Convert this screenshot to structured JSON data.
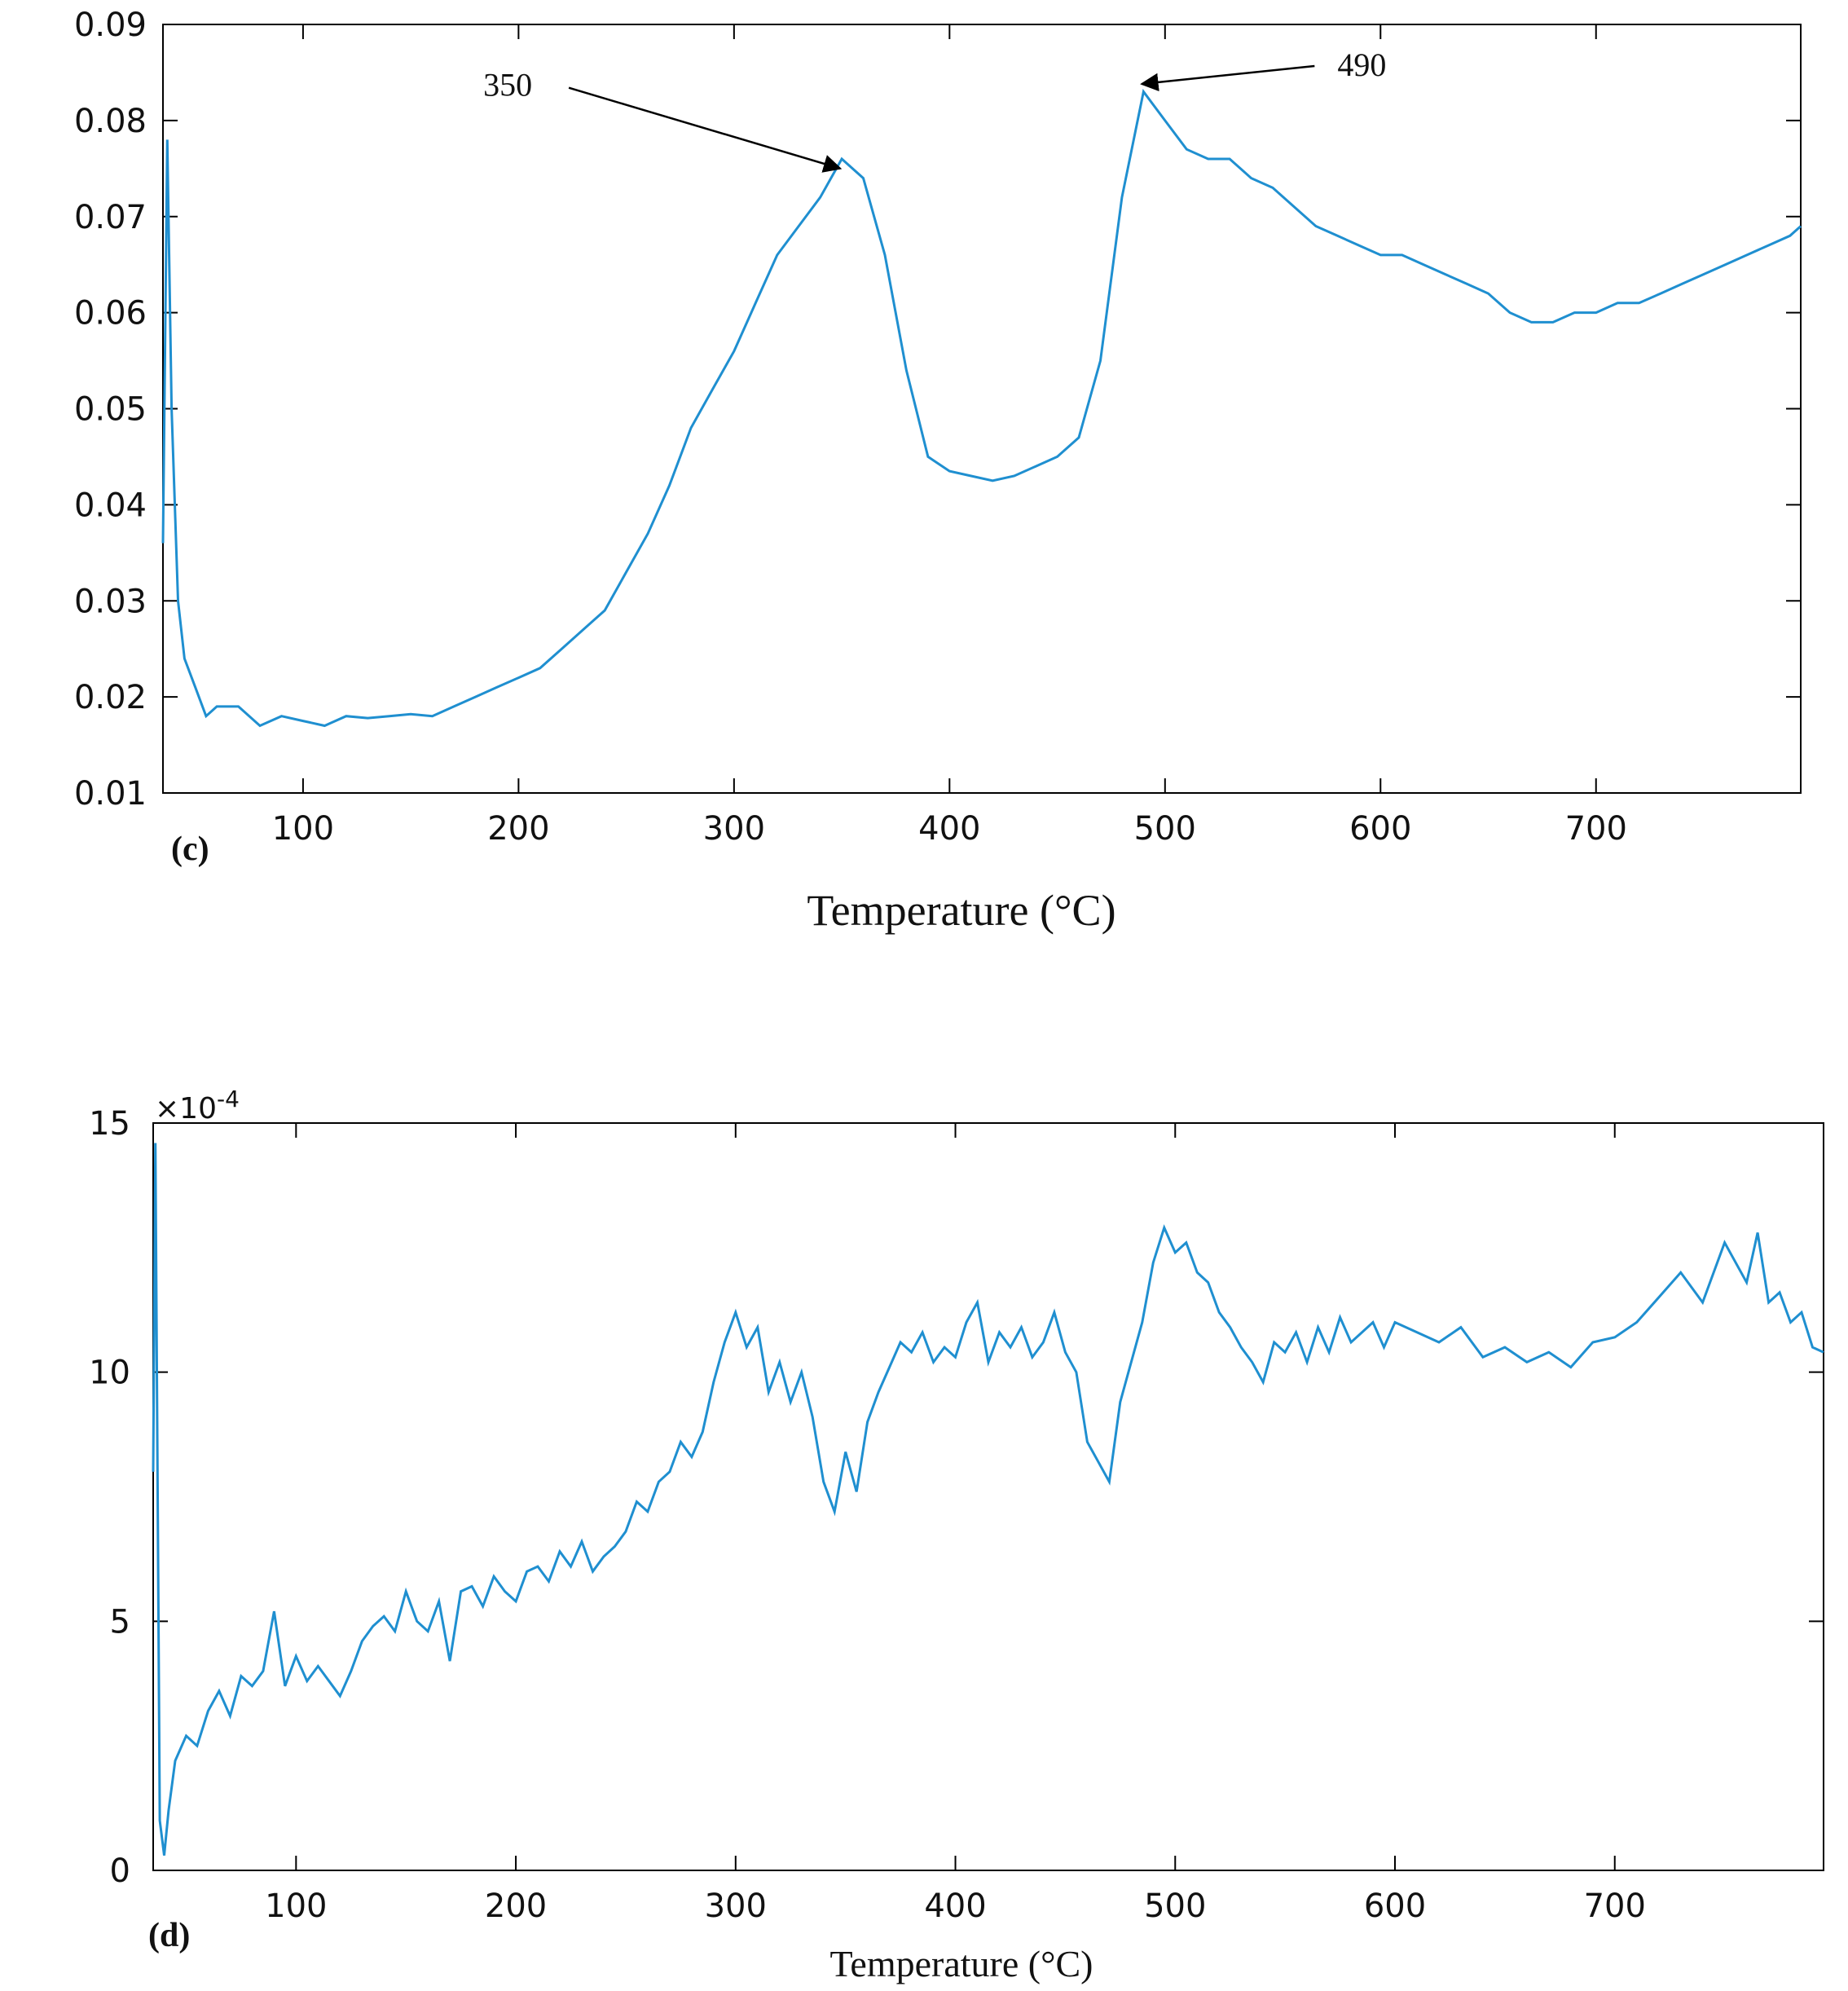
{
  "chart_data": [
    {
      "type": "line",
      "panel_label": "(c)",
      "xlabel": "Temperature (°C)",
      "ylabel": "",
      "xlim": [
        35,
        795
      ],
      "ylim": [
        0.01,
        0.09
      ],
      "xticks": [
        100,
        200,
        300,
        400,
        500,
        600,
        700
      ],
      "yticks": [
        "0.01",
        "0.02",
        "0.03",
        "0.04",
        "0.05",
        "0.06",
        "0.07",
        "0.08",
        "0.09"
      ],
      "ytick_values": [
        0.01,
        0.02,
        0.03,
        0.04,
        0.05,
        0.06,
        0.07,
        0.08,
        0.09
      ],
      "grid": false,
      "color": "#1f8fd0",
      "annotations": [
        {
          "text": "350",
          "x": 350,
          "y": 0.0745
        },
        {
          "text": "490",
          "x": 490,
          "y": 0.0833
        }
      ],
      "series": [
        {
          "x": [
            35,
            37,
            39,
            42,
            45,
            50,
            55,
            60,
            70,
            80,
            90,
            100,
            110,
            120,
            130,
            140,
            150,
            160,
            170,
            180,
            190,
            200,
            210,
            220,
            230,
            240,
            250,
            260,
            270,
            280,
            290,
            300,
            310,
            320,
            330,
            340,
            350,
            360,
            370,
            380,
            390,
            400,
            410,
            420,
            430,
            440,
            450,
            460,
            470,
            480,
            490,
            500,
            510,
            520,
            530,
            540,
            550,
            560,
            570,
            580,
            590,
            600,
            610,
            620,
            630,
            640,
            650,
            660,
            670,
            680,
            690,
            700,
            710,
            720,
            730,
            740,
            750,
            760,
            770,
            780,
            790,
            795
          ],
          "y": [
            0.036,
            0.078,
            0.05,
            0.03,
            0.024,
            0.021,
            0.018,
            0.019,
            0.019,
            0.017,
            0.018,
            0.0175,
            0.017,
            0.018,
            0.0178,
            0.018,
            0.0182,
            0.018,
            0.019,
            0.02,
            0.021,
            0.022,
            0.023,
            0.025,
            0.027,
            0.029,
            0.033,
            0.037,
            0.042,
            0.048,
            0.052,
            0.056,
            0.061,
            0.066,
            0.069,
            0.072,
            0.076,
            0.074,
            0.066,
            0.054,
            0.045,
            0.0435,
            0.043,
            0.0425,
            0.043,
            0.044,
            0.045,
            0.047,
            0.055,
            0.072,
            0.083,
            0.08,
            0.077,
            0.076,
            0.076,
            0.074,
            0.073,
            0.071,
            0.069,
            0.068,
            0.067,
            0.066,
            0.066,
            0.065,
            0.064,
            0.063,
            0.062,
            0.06,
            0.059,
            0.059,
            0.06,
            0.06,
            0.061,
            0.061,
            0.062,
            0.063,
            0.064,
            0.065,
            0.066,
            0.067,
            0.068,
            0.069
          ]
        }
      ]
    },
    {
      "type": "line",
      "panel_label": "(d)",
      "xlabel": "Temperature (°C)",
      "ylabel": "",
      "xlim": [
        35,
        795
      ],
      "ylim": [
        0,
        15
      ],
      "scale_note": "×10",
      "scale_exponent": "-4",
      "xticks": [
        100,
        200,
        300,
        400,
        500,
        600,
        700
      ],
      "yticks": [
        "0",
        "5",
        "10",
        "15"
      ],
      "ytick_values": [
        0,
        5,
        10,
        15
      ],
      "grid": false,
      "color": "#1f8fd0",
      "series": [
        {
          "x": [
            35,
            36,
            38,
            40,
            42,
            45,
            50,
            55,
            60,
            65,
            70,
            75,
            80,
            85,
            90,
            95,
            100,
            105,
            110,
            115,
            120,
            125,
            130,
            135,
            140,
            145,
            150,
            155,
            160,
            165,
            170,
            175,
            180,
            185,
            190,
            195,
            200,
            205,
            210,
            215,
            220,
            225,
            230,
            235,
            240,
            245,
            250,
            255,
            260,
            265,
            270,
            275,
            280,
            285,
            290,
            295,
            300,
            305,
            310,
            315,
            320,
            325,
            330,
            335,
            340,
            345,
            350,
            355,
            360,
            365,
            370,
            375,
            380,
            385,
            390,
            395,
            400,
            405,
            410,
            415,
            420,
            425,
            430,
            435,
            440,
            445,
            450,
            455,
            460,
            465,
            470,
            475,
            480,
            485,
            490,
            495,
            500,
            505,
            510,
            515,
            520,
            525,
            530,
            535,
            540,
            545,
            550,
            555,
            560,
            565,
            570,
            575,
            580,
            585,
            590,
            595,
            600,
            610,
            620,
            630,
            640,
            650,
            660,
            670,
            680,
            690,
            700,
            710,
            720,
            730,
            740,
            750,
            760,
            765,
            770,
            775,
            780,
            785,
            790,
            795
          ],
          "y": [
            8,
            14.6,
            1.0,
            0.3,
            1.2,
            2.2,
            2.7,
            2.5,
            3.2,
            3.6,
            3.1,
            3.9,
            3.7,
            4.0,
            5.2,
            3.7,
            4.3,
            3.8,
            4.1,
            3.8,
            3.5,
            4.0,
            4.6,
            4.9,
            5.1,
            4.8,
            5.6,
            5.0,
            4.8,
            5.4,
            4.2,
            5.6,
            5.7,
            5.3,
            5.9,
            5.6,
            5.4,
            6.0,
            6.1,
            5.8,
            6.4,
            6.1,
            6.6,
            6.0,
            6.3,
            6.5,
            6.8,
            7.4,
            7.2,
            7.8,
            8.0,
            8.6,
            8.3,
            8.8,
            9.8,
            10.6,
            11.2,
            10.5,
            10.9,
            9.6,
            10.2,
            9.4,
            10.0,
            9.1,
            7.8,
            7.2,
            8.4,
            7.6,
            9.0,
            9.6,
            10.1,
            10.6,
            10.4,
            10.8,
            10.2,
            10.5,
            10.3,
            11.0,
            11.4,
            10.2,
            10.8,
            10.5,
            10.9,
            10.3,
            10.6,
            11.2,
            10.4,
            10.0,
            8.6,
            8.2,
            7.8,
            9.4,
            10.2,
            11.0,
            12.2,
            12.9,
            12.4,
            12.6,
            12.0,
            11.8,
            11.2,
            10.9,
            10.5,
            10.2,
            9.8,
            10.6,
            10.4,
            10.8,
            10.2,
            10.9,
            10.4,
            11.1,
            10.6,
            10.8,
            11.0,
            10.5,
            11.0,
            10.8,
            10.6,
            10.9,
            10.3,
            10.5,
            10.2,
            10.4,
            10.1,
            10.6,
            10.7,
            11.0,
            11.5,
            12.0,
            11.4,
            12.6,
            11.8,
            12.8,
            11.4,
            11.6,
            11.0,
            11.2,
            10.5,
            10.4
          ]
        }
      ]
    }
  ]
}
